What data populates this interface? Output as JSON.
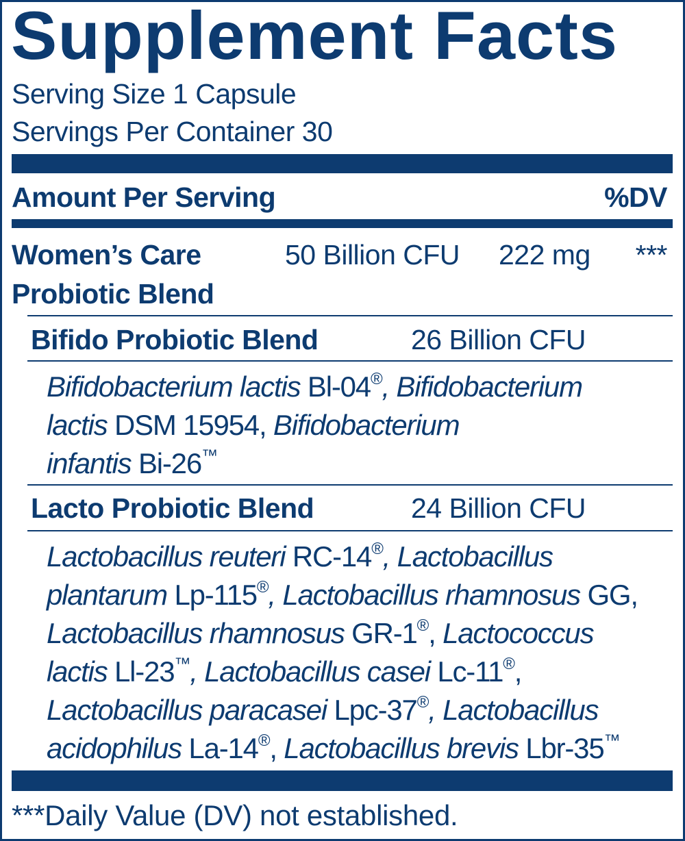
{
  "title": "Supplement Facts",
  "serving_size": "Serving Size 1 Capsule",
  "servings_per_container": "Servings Per Container 30",
  "header": {
    "amount_per_serving": "Amount Per Serving",
    "dv": "%DV"
  },
  "blend": {
    "name_line1": "Women’s Care",
    "name_line2": "Probiotic Blend",
    "cfu": "50 Billion CFU",
    "amount": "222 mg",
    "dv": "***"
  },
  "sub_blends": [
    {
      "name": "Bifido Probiotic Blend",
      "cfu": "26 Billion CFU",
      "lines": [
        [
          {
            "t": "Bifidobacterium lactis",
            "i": true
          },
          {
            "t": " Bl-04"
          },
          {
            "t": "®",
            "sup": true
          },
          {
            "t": ", Bifidobacterium",
            "i": true
          }
        ],
        [
          {
            "t": "lactis",
            "i": true
          },
          {
            "t": " DSM 15954, "
          },
          {
            "t": "Bifidobacterium",
            "i": true
          }
        ],
        [
          {
            "t": "infantis",
            "i": true
          },
          {
            "t": " Bi-26"
          },
          {
            "t": "™",
            "sup": true
          }
        ]
      ]
    },
    {
      "name": "Lacto Probiotic Blend",
      "cfu": "24 Billion CFU",
      "lines": [
        [
          {
            "t": "Lactobacillus reuteri",
            "i": true
          },
          {
            "t": " RC-14"
          },
          {
            "t": "®",
            "sup": true
          },
          {
            "t": ", Lactobacillus",
            "i": true
          }
        ],
        [
          {
            "t": "plantarum",
            "i": true
          },
          {
            "t": " Lp-115"
          },
          {
            "t": "®",
            "sup": true
          },
          {
            "t": ", Lactobacillus rhamnosus",
            "i": true
          },
          {
            "t": " GG,"
          }
        ],
        [
          {
            "t": "Lactobacillus rhamnosus",
            "i": true
          },
          {
            "t": " GR-1"
          },
          {
            "t": "®",
            "sup": true
          },
          {
            "t": ", "
          },
          {
            "t": "Lactococcus",
            "i": true
          }
        ],
        [
          {
            "t": "lactis",
            "i": true
          },
          {
            "t": " Ll-23"
          },
          {
            "t": "™",
            "sup": true
          },
          {
            "t": ", Lactobacillus casei",
            "i": true
          },
          {
            "t": " Lc-11"
          },
          {
            "t": "®",
            "sup": true
          },
          {
            "t": ","
          }
        ],
        [
          {
            "t": "Lactobacillus paracasei",
            "i": true
          },
          {
            "t": " Lpc-37"
          },
          {
            "t": "®",
            "sup": true
          },
          {
            "t": ", Lactobacillus",
            "i": true
          }
        ],
        [
          {
            "t": "acidophilus",
            "i": true
          },
          {
            "t": " La-14"
          },
          {
            "t": "®",
            "sup": true
          },
          {
            "t": ", "
          },
          {
            "t": "Lactobacillus brevis",
            "i": true
          },
          {
            "t": " Lbr-35"
          },
          {
            "t": "™",
            "sup": true
          }
        ]
      ]
    }
  ],
  "footnote": "***Daily Value (DV) not established.",
  "colors": {
    "ink": "#0d3b70",
    "background": "#ffffff"
  }
}
